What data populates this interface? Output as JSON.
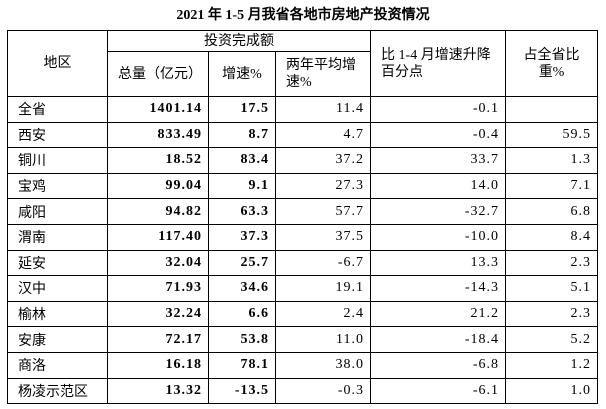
{
  "title": "2021 年 1-5 月我省各地市房地产投资情况",
  "header": {
    "region": "地区",
    "investment": "投资完成额",
    "total": "总量（亿元）",
    "growth": "增速%",
    "two_year": "两年平均增速%",
    "change": "比 1-4 月增速升降百分点",
    "share": "占全省比重%"
  },
  "table": {
    "rows": [
      [
        "全省",
        "1401.14",
        "17.5",
        "11.4",
        "-0.1"
      ],
      [
        "西安",
        "833.49",
        "8.7",
        "4.7",
        "-0.4",
        "59.5"
      ],
      [
        "铜川",
        "18.52",
        "83.4",
        "37.2",
        "33.7",
        "1.3"
      ],
      [
        "宝鸡",
        "99.04",
        "9.1",
        "27.3",
        "14.0",
        "7.1"
      ],
      [
        "咸阳",
        "94.82",
        "63.3",
        "57.7",
        "-32.7",
        "6.8"
      ],
      [
        "渭南",
        "117.40",
        "37.3",
        "37.5",
        "-10.0",
        "8.4"
      ],
      [
        "延安",
        "32.04",
        "25.7",
        "-6.7",
        "13.3",
        "2.3"
      ],
      [
        "汉中",
        "71.93",
        "34.6",
        "19.1",
        "-14.3",
        "5.1"
      ],
      [
        "榆林",
        "32.24",
        "6.6",
        "2.4",
        "21.2",
        "2.3"
      ],
      [
        "安康",
        "72.17",
        "53.8",
        "11.0",
        "-18.4",
        "5.2"
      ],
      [
        "商洛",
        "16.18",
        "78.1",
        "38.0",
        "-6.8",
        "1.2"
      ],
      [
        "杨凌示范区",
        "13.32",
        "-13.5",
        "-0.3",
        "-6.1",
        "1.0"
      ]
    ]
  }
}
